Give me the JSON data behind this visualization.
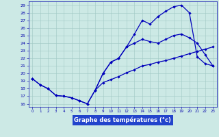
{
  "xlabel": "Graphe des températures (°c)",
  "background_color": "#cce9e5",
  "grid_color": "#a0c8c4",
  "line_color": "#0000bb",
  "xlim_min": -0.5,
  "xlim_max": 23.5,
  "ylim_min": 15.6,
  "ylim_max": 29.5,
  "xticks": [
    0,
    1,
    2,
    3,
    4,
    5,
    6,
    7,
    8,
    9,
    10,
    11,
    12,
    13,
    14,
    15,
    16,
    17,
    18,
    19,
    20,
    21,
    22,
    23
  ],
  "yticks": [
    16,
    17,
    18,
    19,
    20,
    21,
    22,
    23,
    24,
    25,
    26,
    27,
    28,
    29
  ],
  "curve_a_x": [
    0,
    1,
    2,
    3,
    4,
    5,
    6,
    7,
    8,
    9,
    10,
    11,
    12,
    13,
    14,
    15,
    16,
    17,
    18,
    19,
    20,
    21,
    22,
    23
  ],
  "curve_a_y": [
    19.3,
    18.5,
    18.0,
    17.1,
    17.0,
    16.8,
    16.4,
    16.0,
    17.8,
    20.0,
    21.5,
    22.0,
    23.5,
    25.2,
    27.0,
    26.5,
    27.5,
    28.2,
    28.8,
    29.0,
    28.0,
    22.2,
    21.3,
    21.0
  ],
  "curve_b_x": [
    0,
    1,
    2,
    3,
    4,
    5,
    6,
    7,
    8,
    9,
    10,
    11,
    12,
    13,
    14,
    15,
    16,
    17,
    18,
    19,
    20,
    21,
    22,
    23
  ],
  "curve_b_y": [
    19.3,
    null,
    null,
    null,
    null,
    null,
    null,
    null,
    17.8,
    20.0,
    21.5,
    22.0,
    23.5,
    24.0,
    24.5,
    24.2,
    24.0,
    24.5,
    25.0,
    25.2,
    24.7,
    24.0,
    22.5,
    21.0
  ],
  "curve_c_x": [
    0,
    1,
    2,
    3,
    4,
    5,
    6,
    7,
    8,
    9,
    10,
    11,
    12,
    13,
    14,
    15,
    16,
    17,
    18,
    19,
    20,
    21,
    22,
    23
  ],
  "curve_c_y": [
    19.3,
    18.5,
    18.0,
    17.1,
    17.0,
    16.8,
    16.4,
    16.0,
    17.8,
    18.8,
    19.2,
    19.6,
    20.1,
    20.5,
    21.0,
    21.2,
    21.5,
    21.7,
    22.0,
    22.3,
    22.6,
    22.9,
    23.2,
    23.5
  ]
}
